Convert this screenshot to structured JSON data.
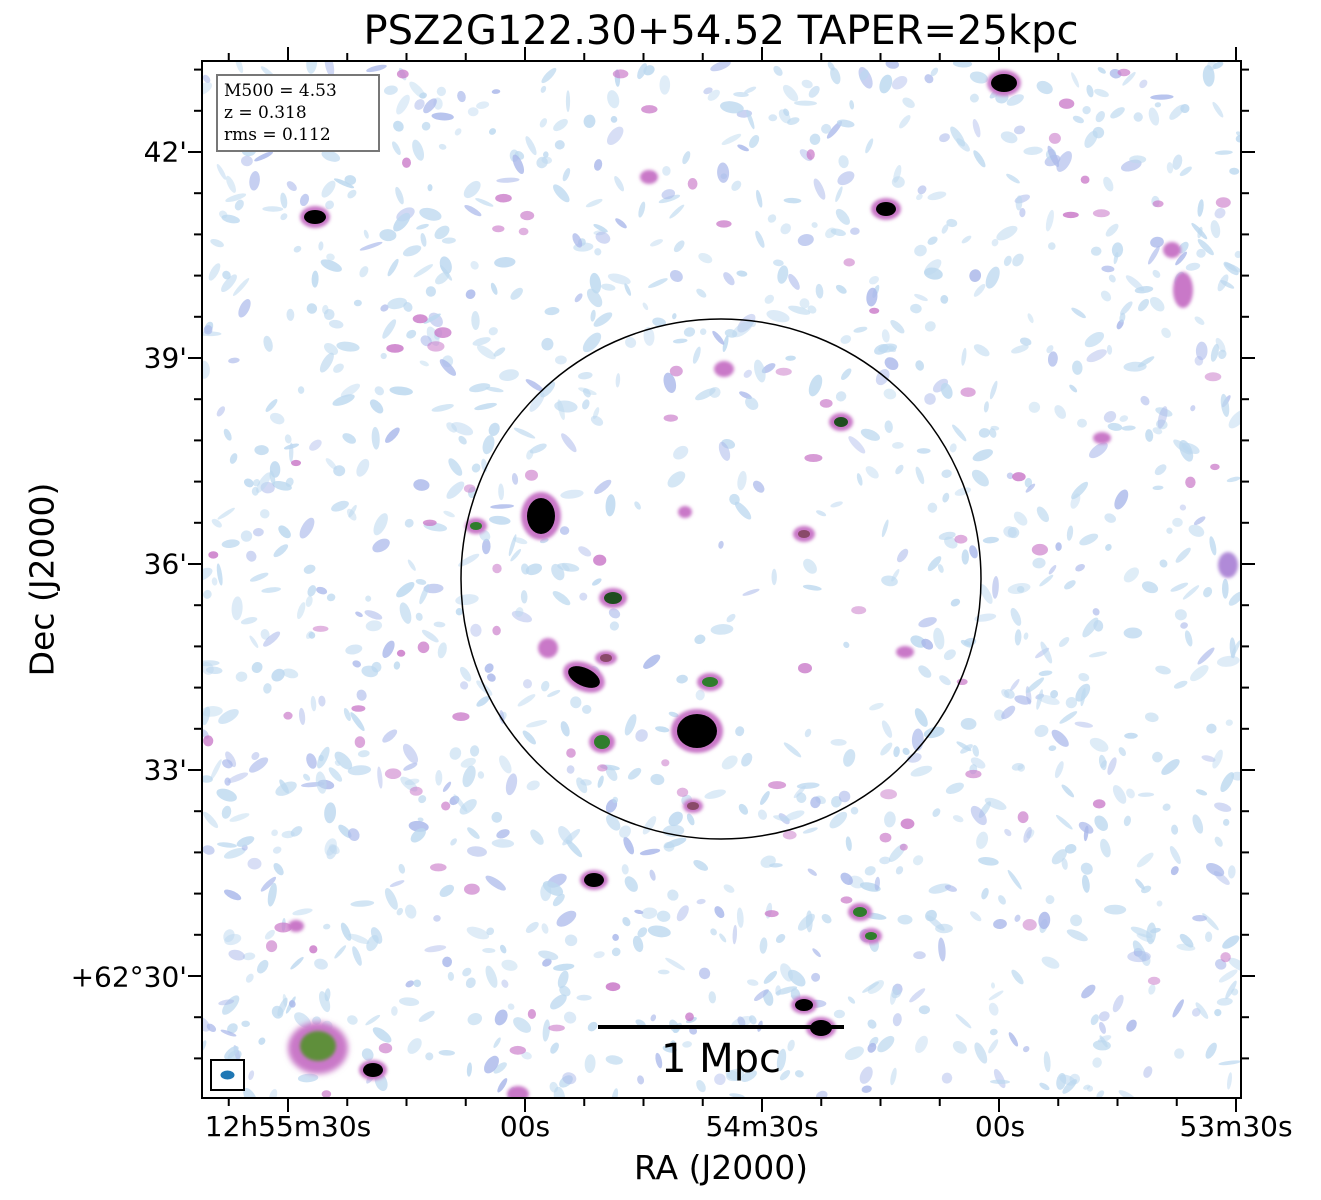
{
  "figure": {
    "title": "PSZ2G122.30+54.52 TAPER=25kpc",
    "xlabel": "RA (J2000)",
    "ylabel": "Dec (J2000)",
    "x_ticks": [
      "12h55m30s",
      "00s",
      "54m30s",
      "00s",
      "53m30s"
    ],
    "y_ticks": [
      "42'",
      "39'",
      "36'",
      "33'",
      "+62°30'"
    ]
  },
  "info_box": {
    "m500": "M500 = 4.53",
    "z": "z = 0.318",
    "rms": "rms = 0.112"
  },
  "scale_bar": {
    "label": "1 Mpc"
  },
  "colors": {
    "background": "#ffffff",
    "noise_light": "#bcd8ef",
    "noise_blue": "#aab8ea",
    "emission_pink": "#c978c8",
    "emission_green": "#2f7d2c",
    "source_core": "#000000",
    "beam": "#1f77b4"
  }
}
